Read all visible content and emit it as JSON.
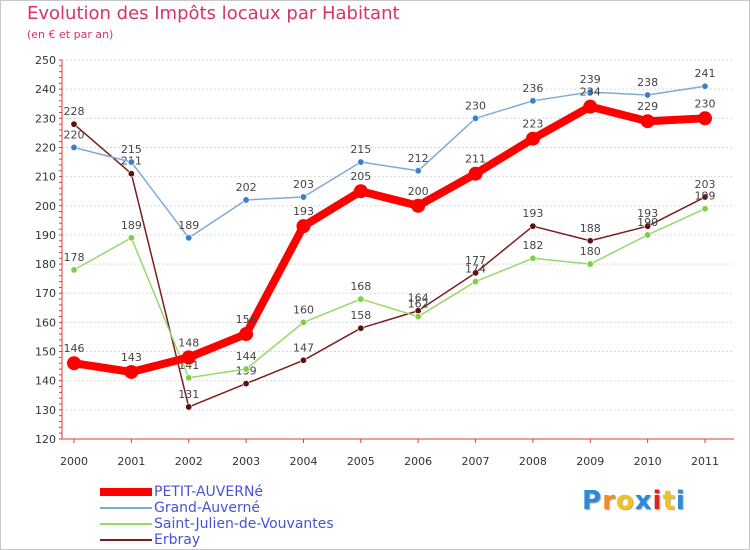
{
  "chart_data": {
    "type": "line",
    "title": "Evolution des Impôts locaux par Habitant",
    "subtitle": "(en € et par an)",
    "xlabel": "",
    "ylabel": "",
    "categories": [
      "2000",
      "2001",
      "2002",
      "2003",
      "2004",
      "2005",
      "2006",
      "2007",
      "2008",
      "2009",
      "2010",
      "2011"
    ],
    "ylim": [
      120,
      250
    ],
    "yticks": [
      120,
      130,
      140,
      150,
      160,
      170,
      180,
      190,
      200,
      210,
      220,
      230,
      240,
      250
    ],
    "ytick_labels": [
      "120",
      "130",
      "140",
      "150",
      "160",
      "170",
      "180",
      "190",
      "200",
      "210",
      "220",
      "230",
      "240",
      "250"
    ],
    "grid": "horizontal",
    "legend_position": "bottom-left",
    "series": [
      {
        "name": "Erbray",
        "color": "#7a1f1f",
        "marker": "#5c1010",
        "values": [
          228,
          211,
          131,
          139,
          147,
          158,
          164,
          177,
          193,
          188,
          193,
          203
        ],
        "labels": [
          "228",
          "211",
          "131",
          "139",
          "147",
          "158",
          "164",
          "177",
          "193",
          "188",
          "193",
          "203"
        ]
      },
      {
        "name": "Saint-Julien-de-Vouvantes",
        "color": "#96d96a",
        "marker": "#7fcf45",
        "values": [
          178,
          189,
          141,
          144,
          160,
          168,
          162,
          174,
          182,
          180,
          190,
          199
        ],
        "labels": [
          "178",
          "189",
          "141",
          "144",
          "160",
          "168",
          "162",
          "174",
          "182",
          "180",
          "190",
          "199"
        ]
      },
      {
        "name": "Grand-Auverné",
        "color": "#7faad8",
        "marker": "#3a7fc8",
        "values": [
          220,
          215,
          189,
          202,
          203,
          215,
          212,
          230,
          236,
          239,
          238,
          241
        ],
        "labels": [
          "220",
          "215",
          "189",
          "202",
          "203",
          "215",
          "212",
          "230",
          "236",
          "239",
          "238",
          "241"
        ]
      },
      {
        "name": "PETIT-AUVERNé",
        "color": "#ff0000",
        "marker": "#ff0000",
        "values": [
          146,
          143,
          148,
          156,
          193,
          205,
          200,
          211,
          223,
          234,
          229,
          230
        ],
        "labels": [
          "146",
          "143",
          "148",
          "156",
          "193",
          "205",
          "200",
          "211",
          "223",
          "234",
          "229",
          "230"
        ]
      }
    ],
    "legend": [
      {
        "name": "PETIT-AUVERNé",
        "color": "#ff0000",
        "thickness": 8
      },
      {
        "name": "Grand-Auverné",
        "color": "#7faad8",
        "thickness": 2
      },
      {
        "name": "Saint-Julien-de-Vouvantes",
        "color": "#96d96a",
        "thickness": 2
      },
      {
        "name": "Erbray",
        "color": "#7a1f1f",
        "thickness": 2
      }
    ]
  },
  "logo": {
    "letters": [
      "P",
      "r",
      "o",
      "x",
      "i",
      "t",
      "i"
    ],
    "colors": [
      "#2e8ad8",
      "#f28c28",
      "#f2c31a",
      "#2e8ad8",
      "#e2231a",
      "#f2c31a",
      "#2e8ad8"
    ]
  }
}
